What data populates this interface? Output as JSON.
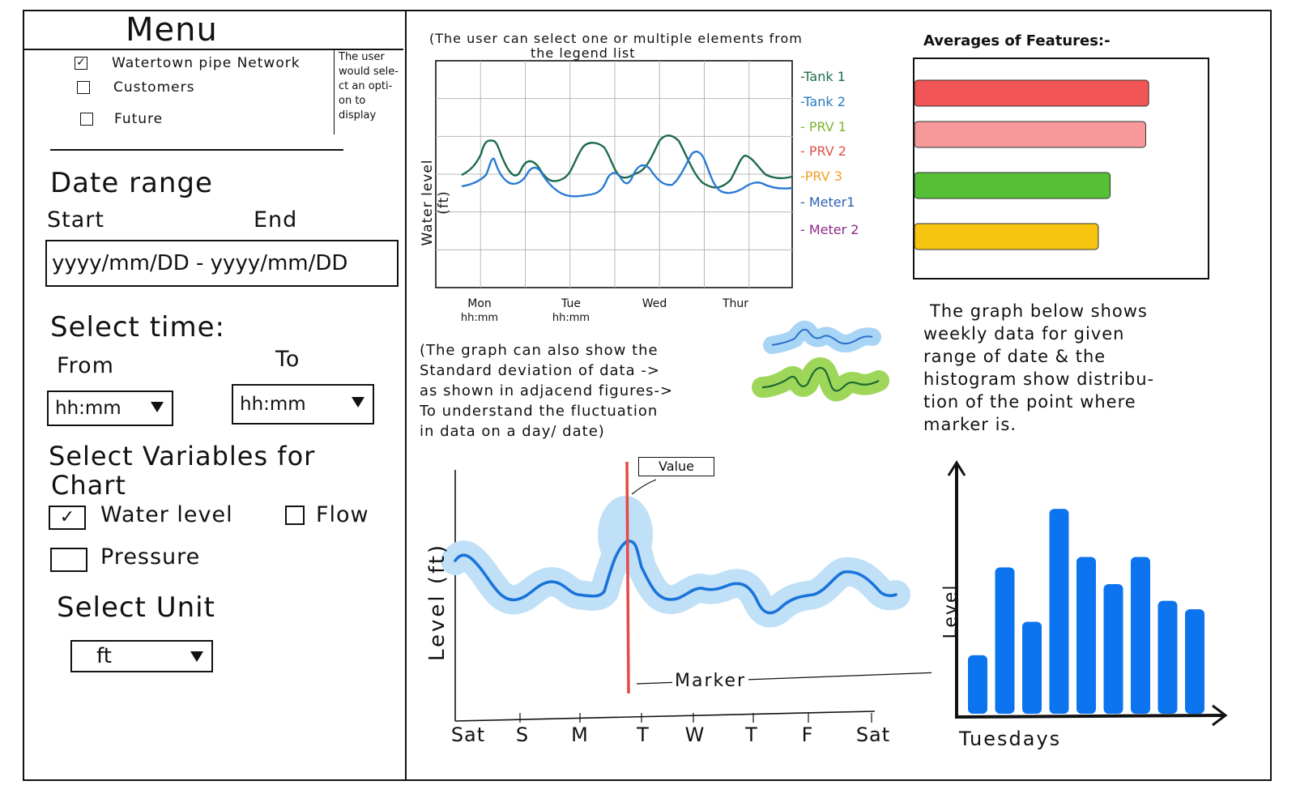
{
  "menu": {
    "title": "Menu",
    "options": [
      {
        "label": "Watertown pipe Network",
        "checked": true
      },
      {
        "label": "Customers",
        "checked": false
      },
      {
        "label": "Future",
        "checked": false
      }
    ],
    "note": [
      "The user",
      "would sele-",
      "ct an opti-",
      "on to",
      "display"
    ]
  },
  "date_range": {
    "heading": "Date range",
    "start_label": "Start",
    "end_label": "End",
    "value": "yyyy/mm/DD - yyyy/mm/DD"
  },
  "time": {
    "heading": "Select time:",
    "from_label": "From",
    "to_label": "To",
    "from_value": "hh:mm",
    "to_value": "hh:mm"
  },
  "variables": {
    "heading_line1": "Select Variables for",
    "heading_line2": "Chart",
    "items": [
      {
        "label": "Water level",
        "checked": true
      },
      {
        "label": "Flow",
        "checked": false
      },
      {
        "label": "Pressure",
        "checked": false
      }
    ]
  },
  "unit": {
    "heading": "Select Unit",
    "value": "ft"
  },
  "top_chart": {
    "note_line1": "(The user can select one or multiple elements from",
    "note_line2": "the legend list",
    "ylabel": "Water level (ft)",
    "xticks": [
      {
        "day": "Mon",
        "sub": "hh:mm"
      },
      {
        "day": "Tue",
        "sub": "hh:mm"
      },
      {
        "day": "Wed",
        "sub": ""
      },
      {
        "day": "Thur",
        "sub": ""
      }
    ],
    "legend": [
      {
        "label": "-Tank 1",
        "color": "#1d6b4a"
      },
      {
        "label": "-Tank 2",
        "color": "#2a7bbf"
      },
      {
        "label": "- PRV 1",
        "color": "#7ab52e"
      },
      {
        "label": "- PRV 2",
        "color": "#e0504a"
      },
      {
        "label": "-PRV 3",
        "color": "#f0a020"
      },
      {
        "label": "- Meter1",
        "color": "#2a5fb5"
      },
      {
        "label": "- Meter 2",
        "color": "#8a2a8a"
      }
    ]
  },
  "averages": {
    "title": "Averages of Features:-",
    "bars": [
      {
        "value": 0.79,
        "color": "#f25555"
      },
      {
        "value": 0.78,
        "color": "#f7999b"
      },
      {
        "value": 0.66,
        "color": "#55c035"
      },
      {
        "value": 0.62,
        "color": "#f7c410"
      }
    ]
  },
  "deviation_note": {
    "lines": [
      "(The graph can also show the",
      "Standard deviation of data ->",
      "as shown in adjacend figures->",
      "To understand the fluctuation",
      "in data on a day/ date)"
    ],
    "blue_color": "#2a6fcc",
    "blue_band": "#a8d4f5",
    "green_color": "#1d6b30",
    "green_band": "#9ed65a"
  },
  "weekly_desc": {
    "lines": [
      "The graph below shows",
      "weekly data for given",
      "range of date & the",
      "histogram show distribu-",
      "tion of the point where",
      "marker is."
    ]
  },
  "bottom_chart": {
    "ylabel": "Level (ft)",
    "xticks": [
      "Sat",
      "S",
      "M",
      "T",
      "W",
      "T",
      "F",
      "Sat"
    ],
    "value_label": "Value",
    "marker_label": "Marker",
    "line_color": "#1a73d9",
    "band_color": "#bfe0f7",
    "marker_color": "#e84848"
  },
  "histogram": {
    "ylabel": "Level",
    "xlabel": "Tuesdays",
    "color": "#0d74f0",
    "values": [
      0.28,
      0.7,
      0.44,
      0.98,
      0.75,
      0.62,
      0.75,
      0.54,
      0.5
    ]
  }
}
